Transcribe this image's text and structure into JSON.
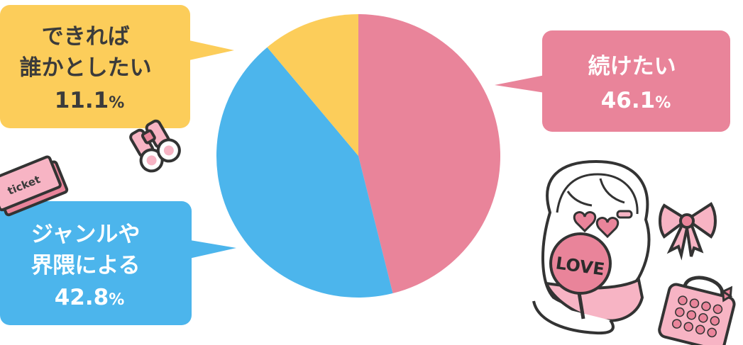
{
  "chart_data": {
    "type": "pie",
    "start": "top",
    "direction": "clockwise",
    "slices": [
      {
        "label_lines": [
          "続けたい"
        ],
        "value": 46.1,
        "value_text": "46.1",
        "unit": "%",
        "color": "#e9849a"
      },
      {
        "label_lines": [
          "ジャンルや",
          "界隈による"
        ],
        "value": 42.8,
        "value_text": "42.8",
        "unit": "%",
        "color": "#4cb5ec"
      },
      {
        "label_lines": [
          "できれば",
          "誰かとしたい"
        ],
        "value": 11.1,
        "value_text": "11.1",
        "unit": "%",
        "color": "#fccd5a"
      }
    ]
  },
  "decorations": {
    "ticket_text": "ticket",
    "sign_text": "LOVE",
    "icons": [
      "binoculars-icon",
      "ticket-icon",
      "girl-with-love-sign-illustration",
      "ribbon-bow-icon",
      "bag-icon"
    ]
  }
}
